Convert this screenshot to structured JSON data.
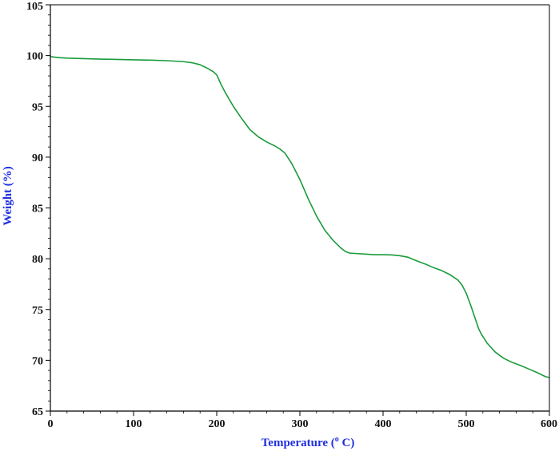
{
  "chart_data": {
    "type": "line",
    "title": "",
    "xlabel": "Temperature (",
    "xlabel_superscript": "o",
    "xlabel_suffix": " C)",
    "ylabel": "Weight (%)",
    "xlim": [
      0,
      600
    ],
    "ylim": [
      65,
      105
    ],
    "x_ticks": [
      0,
      100,
      200,
      300,
      400,
      500,
      600
    ],
    "y_ticks": [
      65,
      70,
      75,
      80,
      85,
      90,
      95,
      100,
      105
    ],
    "x_tick_labels": [
      "0",
      "100",
      "200",
      "300",
      "400",
      "500",
      "600"
    ],
    "y_tick_labels": [
      "65",
      "70",
      "75",
      "80",
      "85",
      "90",
      "95",
      "100",
      "105"
    ],
    "grid": false,
    "legend": "none",
    "colors": {
      "line": "#1a9b3c",
      "axis": "#000000",
      "axis_title": "#1f2fe0"
    },
    "series": [
      {
        "x": [
          0,
          10,
          20,
          40,
          60,
          80,
          100,
          120,
          140,
          160,
          170,
          180,
          190,
          196,
          200,
          205,
          210,
          220,
          230,
          240,
          250,
          260,
          270,
          276,
          282,
          290,
          300,
          310,
          320,
          330,
          340,
          350,
          355,
          360,
          370,
          380,
          390,
          400,
          410,
          420,
          430,
          440,
          450,
          460,
          470,
          480,
          490,
          495,
          500,
          505,
          510,
          515,
          518,
          525,
          535,
          545,
          555,
          565,
          575,
          585,
          595,
          600
        ],
        "y": [
          99.9,
          99.8,
          99.75,
          99.7,
          99.65,
          99.62,
          99.58,
          99.55,
          99.5,
          99.4,
          99.3,
          99.1,
          98.7,
          98.4,
          98.1,
          97.2,
          96.4,
          95.0,
          93.8,
          92.7,
          92.0,
          91.5,
          91.1,
          90.8,
          90.4,
          89.4,
          87.8,
          85.9,
          84.2,
          82.8,
          81.8,
          81.0,
          80.7,
          80.55,
          80.5,
          80.45,
          80.4,
          80.4,
          80.38,
          80.3,
          80.15,
          79.8,
          79.5,
          79.15,
          78.85,
          78.45,
          77.9,
          77.4,
          76.6,
          75.5,
          74.3,
          73.1,
          72.6,
          71.7,
          70.8,
          70.2,
          69.8,
          69.5,
          69.15,
          68.8,
          68.4,
          68.3
        ]
      }
    ]
  }
}
